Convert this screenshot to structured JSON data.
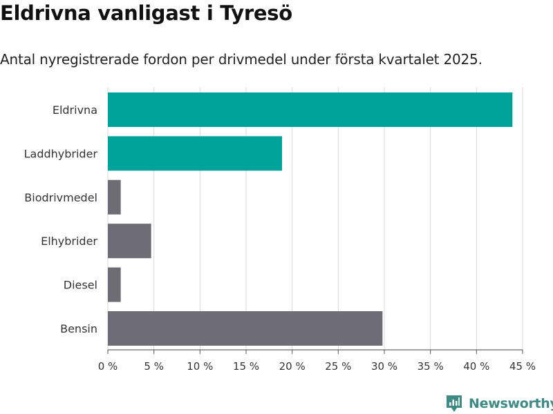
{
  "title": "Eldrivna vanligast i Tyresö",
  "subtitle": "Antal nyregistrerade fordon per drivmedel under första kvartalet 2025.",
  "brand": {
    "name": "Newsworthy",
    "color": "#3e8b86"
  },
  "colors": {
    "highlight": "#00a39a",
    "default": "#6e6d75",
    "grid": "#d9d9d9"
  },
  "chart_data": {
    "type": "bar",
    "orientation": "horizontal",
    "categories": [
      "Eldrivna",
      "Laddhybrider",
      "Biodrivmedel",
      "Elhybrider",
      "Diesel",
      "Bensin"
    ],
    "values": [
      43.9,
      18.9,
      1.4,
      4.7,
      1.4,
      29.8
    ],
    "highlighted": [
      true,
      true,
      false,
      false,
      false,
      false
    ],
    "xlim": [
      0,
      45
    ],
    "xticks": [
      0,
      5,
      10,
      15,
      20,
      25,
      30,
      35,
      40,
      45
    ],
    "xtick_labels": [
      "0 %",
      "5 %",
      "10 %",
      "15 %",
      "20 %",
      "25 %",
      "30 %",
      "35 %",
      "40 %",
      "45 %"
    ],
    "grid": true,
    "legend": "none"
  }
}
